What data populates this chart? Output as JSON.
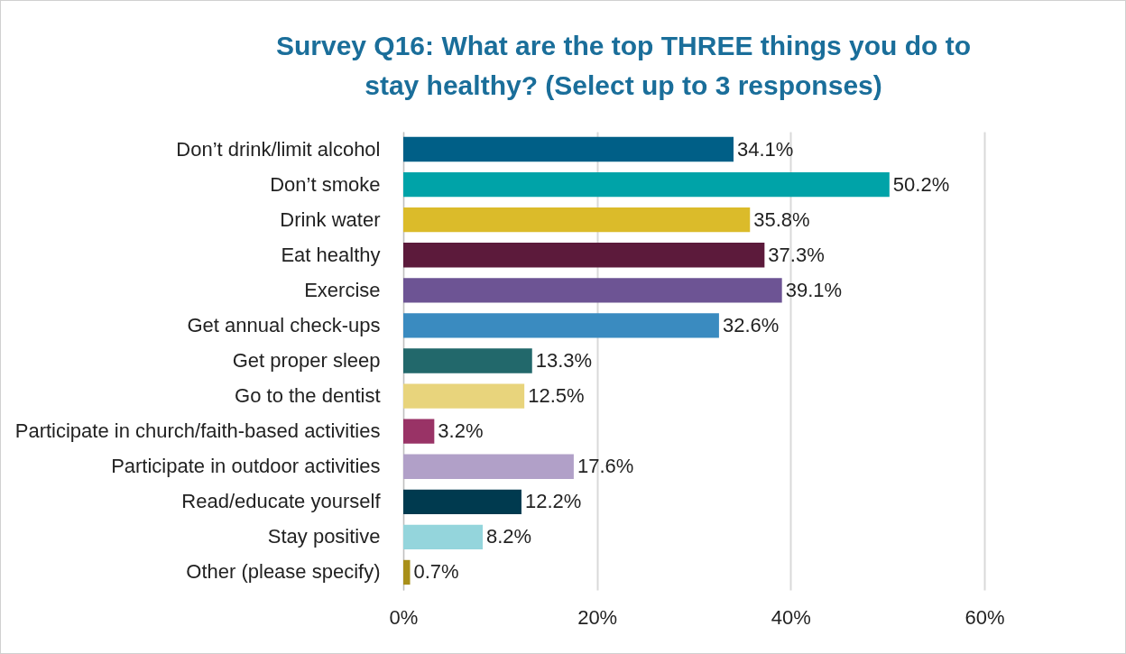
{
  "chart_data": {
    "type": "bar",
    "orientation": "horizontal",
    "title": "Survey Q16: What are the top THREE things you do to stay healthy? (Select up to 3 responses)",
    "categories": [
      "Don’t drink/limit alcohol",
      "Don’t smoke",
      "Drink water",
      "Eat healthy",
      "Exercise",
      "Get annual check-ups",
      "Get proper sleep",
      "Go to the dentist",
      "Participate in church/faith-based activities",
      "Participate in outdoor activities",
      "Read/educate yourself",
      "Stay positive",
      "Other (please specify)"
    ],
    "values": [
      34.1,
      50.2,
      35.8,
      37.3,
      39.1,
      32.6,
      13.3,
      12.5,
      3.2,
      17.6,
      12.2,
      8.2,
      0.7
    ],
    "value_labels": [
      "34.1%",
      "50.2%",
      "35.8%",
      "37.3%",
      "39.1%",
      "32.6%",
      "13.3%",
      "12.5%",
      "3.2%",
      "17.6%",
      "12.2%",
      "8.2%",
      "0.7%"
    ],
    "colors": [
      "#005f87",
      "#00a3a8",
      "#dbbb2a",
      "#5c1a3b",
      "#6d5494",
      "#3a8bc0",
      "#22686b",
      "#e8d47c",
      "#993366",
      "#b1a0c8",
      "#003a4f",
      "#94d5dc",
      "#a88f1a"
    ],
    "xlim": [
      0,
      60
    ],
    "xticks": [
      {
        "value": 0,
        "label": "0%"
      },
      {
        "value": 20,
        "label": "20%"
      },
      {
        "value": 40,
        "label": "40%"
      },
      {
        "value": 60,
        "label": "60%"
      }
    ],
    "grid": "x"
  }
}
